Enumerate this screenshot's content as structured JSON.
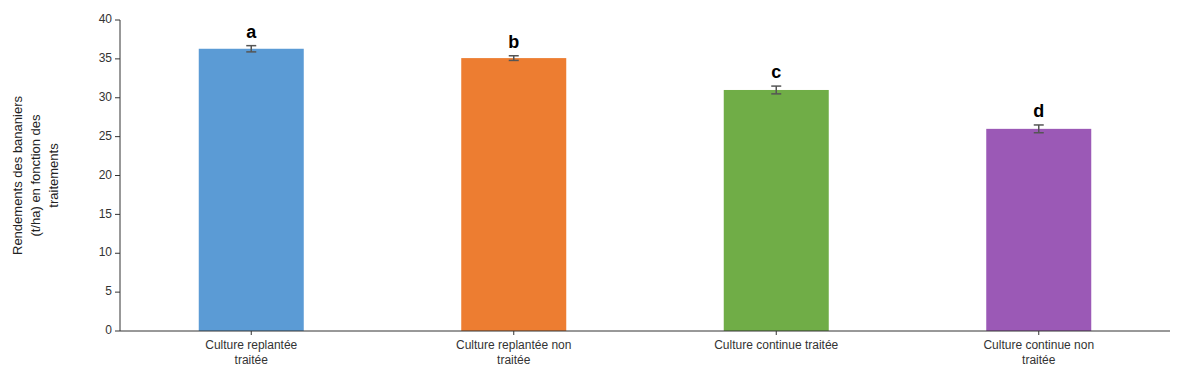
{
  "chart_data": {
    "type": "bar",
    "categories": [
      "Culture replantée\ntraitée",
      "Culture replantée non\ntraitée",
      "Culture continue traitée",
      "Culture continue non\ntraitée"
    ],
    "values": [
      36.3,
      35.1,
      31.0,
      26.0
    ],
    "errors": [
      0.4,
      0.3,
      0.5,
      0.5
    ],
    "colors": [
      "#5B9BD5",
      "#ED7D31",
      "#70AD47",
      "#9B59B6"
    ],
    "annotations": [
      "a",
      "b",
      "c",
      "d"
    ],
    "ylabel": "Rendements des bananiers\n(t/ha) en fonction des\ntraitements",
    "ylim": [
      0,
      40
    ],
    "yticks": [
      0,
      5,
      10,
      15,
      20,
      25,
      30,
      35,
      40
    ],
    "grid": false
  }
}
